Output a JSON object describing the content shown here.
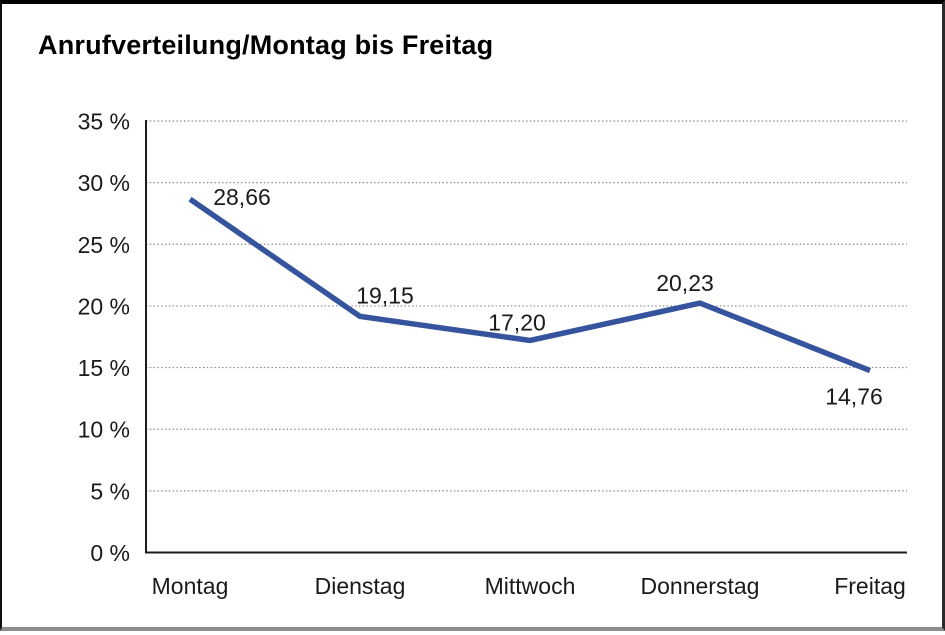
{
  "chart_data": {
    "type": "line",
    "title": "Anrufverteilung/Montag bis Freitag",
    "categories": [
      "Montag",
      "Dienstag",
      "Mittwoch",
      "Donnerstag",
      "Freitag"
    ],
    "values": [
      28.66,
      19.15,
      17.2,
      20.23,
      14.76
    ],
    "point_labels": [
      "28,66",
      "19,15",
      "17,20",
      "20,23",
      "14,76"
    ],
    "series_name": "Anrufverteilung",
    "xlabel": "",
    "ylabel": "",
    "ylim": [
      0,
      35
    ],
    "ytick_step": 5,
    "ytick_values": [
      0,
      5,
      10,
      15,
      20,
      25,
      30,
      35
    ],
    "ytick_labels": [
      "0 %",
      "5 %",
      "10 %",
      "15 %",
      "20 %",
      "25 %",
      "30 %",
      "35 %"
    ],
    "grid": "horizontal-dotted",
    "legend": "none",
    "line_color": "#36549E",
    "axis_color": "#1c1c1c",
    "gridline_color": "#8a8a8a",
    "background_color": "#ffffff",
    "decimal_separator": ","
  }
}
